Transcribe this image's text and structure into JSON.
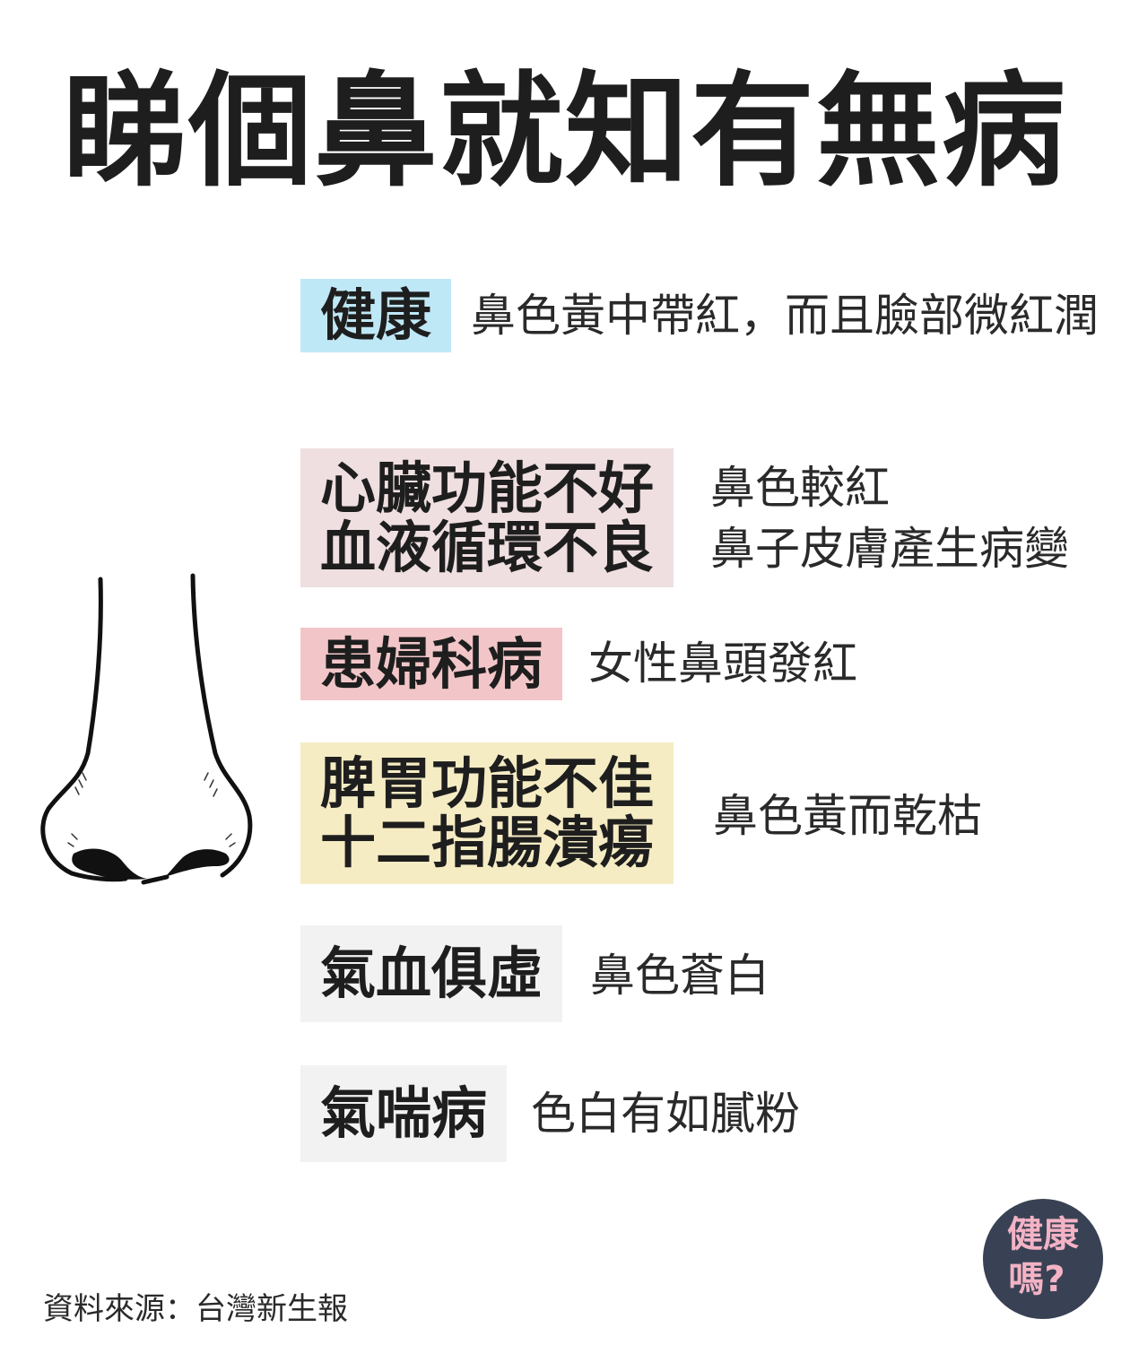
{
  "title": "睇個鼻就知有無病",
  "items": [
    {
      "label_lines": [
        "健康"
      ],
      "descriptions": [
        "鼻色黃中帶紅，而且臉部微紅潤"
      ],
      "color": "#bfe8f7"
    },
    {
      "label_lines": [
        "心臟功能不好",
        "血液循環不良"
      ],
      "descriptions": [
        "鼻色較紅",
        "鼻子皮膚產生病變"
      ],
      "color": "#efdfe0"
    },
    {
      "label_lines": [
        "患婦科病"
      ],
      "descriptions": [
        "女性鼻頭發紅"
      ],
      "color": "#f2c6c8"
    },
    {
      "label_lines": [
        "脾胃功能不佳",
        "十二指腸潰瘍"
      ],
      "descriptions": [
        "鼻色黃而乾枯"
      ],
      "color": "#f5ecc4"
    },
    {
      "label_lines": [
        "氣血俱虛"
      ],
      "descriptions": [
        "鼻色蒼白"
      ],
      "color": "#f2f2f2"
    },
    {
      "label_lines": [
        "氣喘病"
      ],
      "descriptions": [
        "色白有如膩粉"
      ],
      "color": "#f2f2f2"
    }
  ],
  "source": "資料來源：台灣新生報",
  "logo": {
    "line1": "健康",
    "line2": "嗎?"
  },
  "illustration": {
    "icon": "nose-icon"
  }
}
